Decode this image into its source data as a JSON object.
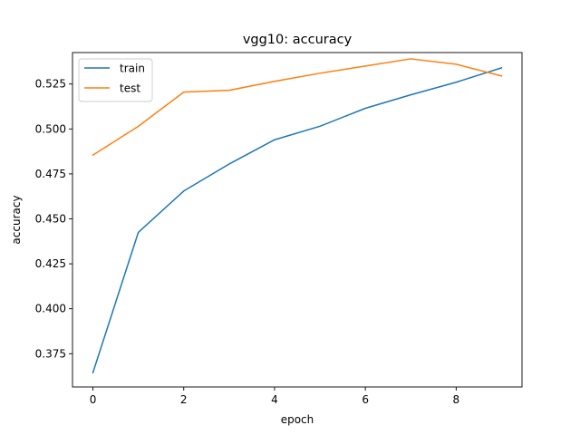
{
  "chart_data": {
    "type": "line",
    "title": "vgg10: accuracy",
    "xlabel": "epoch",
    "ylabel": "accuracy",
    "xlim": [
      -0.45,
      9.45
    ],
    "ylim": [
      0.3565,
      0.5425
    ],
    "xticks": [
      0,
      2,
      4,
      6,
      8
    ],
    "xtick_labels": [
      "0",
      "2",
      "4",
      "6",
      "8"
    ],
    "yticks": [
      0.375,
      0.4,
      0.425,
      0.45,
      0.475,
      0.5,
      0.525
    ],
    "ytick_labels": [
      "0.375",
      "0.400",
      "0.425",
      "0.450",
      "0.475",
      "0.500",
      "0.525"
    ],
    "grid": false,
    "legend_position": "top-left",
    "x": [
      0,
      1,
      2,
      3,
      4,
      5,
      6,
      7,
      8,
      9
    ],
    "series": [
      {
        "name": "train",
        "color": "#1f77b4",
        "values": [
          0.3645,
          0.4425,
          0.4655,
          0.4805,
          0.494,
          0.5015,
          0.5115,
          0.519,
          0.526,
          0.534
        ]
      },
      {
        "name": "test",
        "color": "#ff7f0e",
        "values": [
          0.4855,
          0.5015,
          0.5205,
          0.5215,
          0.5265,
          0.531,
          0.535,
          0.539,
          0.536,
          0.5295
        ]
      }
    ]
  }
}
